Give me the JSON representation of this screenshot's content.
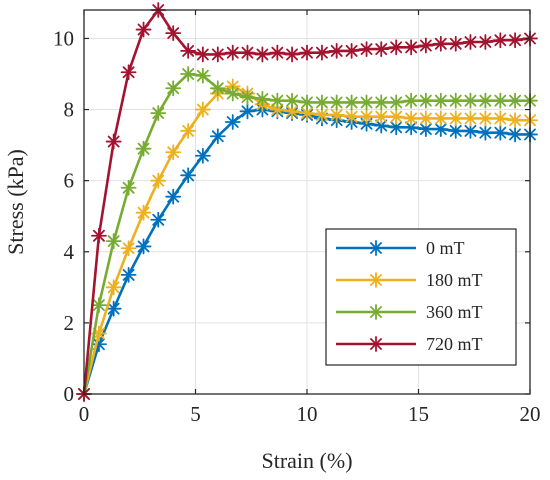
{
  "chart_data": {
    "type": "line",
    "title": "",
    "xlabel": "Strain (%)",
    "ylabel": "Stress (kPa)",
    "xlim": [
      0,
      20
    ],
    "ylim": [
      0,
      10.8
    ],
    "xticks": [
      0,
      5,
      10,
      15,
      20
    ],
    "yticks": [
      0,
      2,
      4,
      6,
      8,
      10
    ],
    "grid": true,
    "legend_position": "lower-right",
    "marker": "asterisk",
    "series": [
      {
        "name": "0 mT",
        "color": "#0072BD",
        "x": [
          0,
          0.67,
          1.33,
          2.0,
          2.67,
          3.33,
          4.0,
          4.67,
          5.33,
          6.0,
          6.67,
          7.33,
          8.0,
          8.67,
          9.33,
          10.0,
          10.67,
          11.33,
          12.0,
          12.67,
          13.33,
          14.0,
          14.67,
          15.33,
          16.0,
          16.67,
          17.33,
          18.0,
          18.67,
          19.33,
          20.0
        ],
        "y": [
          0,
          1.4,
          2.4,
          3.35,
          4.15,
          4.9,
          5.55,
          6.15,
          6.7,
          7.25,
          7.65,
          7.95,
          8.0,
          7.95,
          7.9,
          7.85,
          7.75,
          7.7,
          7.65,
          7.6,
          7.55,
          7.5,
          7.5,
          7.45,
          7.45,
          7.4,
          7.4,
          7.35,
          7.35,
          7.3,
          7.3
        ]
      },
      {
        "name": "180 mT",
        "color": "#EDB120",
        "x": [
          0,
          0.67,
          1.33,
          2.0,
          2.67,
          3.33,
          4.0,
          4.67,
          5.33,
          6.0,
          6.67,
          7.33,
          8.0,
          8.67,
          9.33,
          10.0,
          10.67,
          11.33,
          12.0,
          12.67,
          13.33,
          14.0,
          14.67,
          15.33,
          16.0,
          16.67,
          17.33,
          18.0,
          18.67,
          19.33,
          20.0
        ],
        "y": [
          0,
          1.7,
          3.0,
          4.1,
          5.1,
          6.0,
          6.8,
          7.4,
          8.0,
          8.45,
          8.65,
          8.45,
          8.15,
          8.0,
          7.95,
          7.9,
          7.85,
          7.85,
          7.8,
          7.8,
          7.8,
          7.8,
          7.75,
          7.75,
          7.75,
          7.75,
          7.75,
          7.75,
          7.75,
          7.7,
          7.7
        ]
      },
      {
        "name": "360 mT",
        "color": "#77AC30",
        "x": [
          0,
          0.67,
          1.33,
          2.0,
          2.67,
          3.33,
          4.0,
          4.67,
          5.33,
          6.0,
          6.67,
          7.33,
          8.0,
          8.67,
          9.33,
          10.0,
          10.67,
          11.33,
          12.0,
          12.67,
          13.33,
          14.0,
          14.67,
          15.33,
          16.0,
          16.67,
          17.33,
          18.0,
          18.67,
          19.33,
          20.0
        ],
        "y": [
          0,
          2.5,
          4.3,
          5.8,
          6.9,
          7.9,
          8.6,
          9.0,
          8.95,
          8.6,
          8.45,
          8.35,
          8.3,
          8.25,
          8.25,
          8.2,
          8.2,
          8.2,
          8.2,
          8.2,
          8.2,
          8.2,
          8.25,
          8.25,
          8.25,
          8.25,
          8.25,
          8.25,
          8.25,
          8.25,
          8.25
        ]
      },
      {
        "name": "720 mT",
        "color": "#A2142F",
        "x": [
          0,
          0.67,
          1.33,
          2.0,
          2.67,
          3.33,
          4.0,
          4.67,
          5.33,
          6.0,
          6.67,
          7.33,
          8.0,
          8.67,
          9.33,
          10.0,
          10.67,
          11.33,
          12.0,
          12.67,
          13.33,
          14.0,
          14.67,
          15.33,
          16.0,
          16.67,
          17.33,
          18.0,
          18.67,
          19.33,
          20.0
        ],
        "y": [
          0,
          4.45,
          7.1,
          9.05,
          10.25,
          10.8,
          10.15,
          9.65,
          9.55,
          9.55,
          9.6,
          9.6,
          9.55,
          9.6,
          9.55,
          9.6,
          9.6,
          9.65,
          9.65,
          9.7,
          9.7,
          9.75,
          9.75,
          9.8,
          9.85,
          9.85,
          9.9,
          9.9,
          9.95,
          9.95,
          10.0
        ]
      }
    ]
  }
}
